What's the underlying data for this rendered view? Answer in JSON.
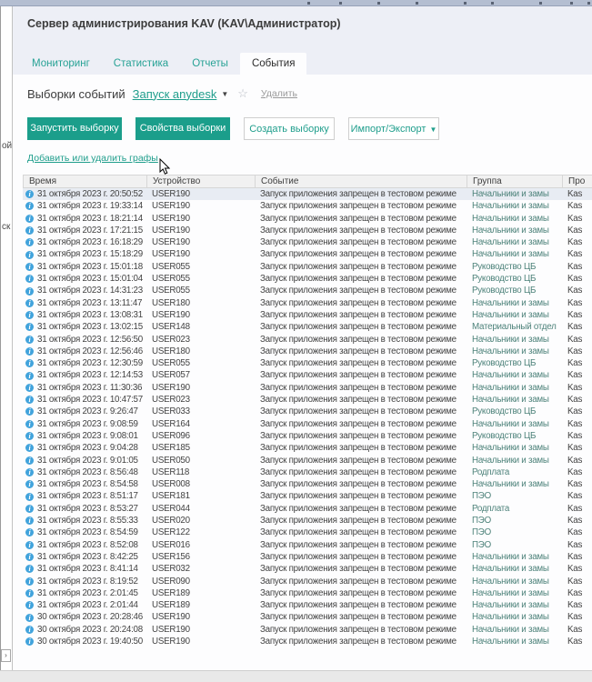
{
  "window": {
    "title": "Сервер администрирования KAV (KAV\\Администратор)"
  },
  "tabs": [
    {
      "name": "monitoring",
      "label": "Мониторинг",
      "active": false
    },
    {
      "name": "statistics",
      "label": "Статистика",
      "active": false
    },
    {
      "name": "reports",
      "label": "Отчеты",
      "active": false
    },
    {
      "name": "events",
      "label": "События",
      "active": true
    }
  ],
  "selector": {
    "label": "Выборки событий",
    "value": "Запуск anydesk",
    "dropdown_icon": "▼",
    "favorite_icon": "☆",
    "delete_label": "Удалить"
  },
  "toolbar": [
    {
      "name": "run-selection",
      "label": "Запустить выборку",
      "style": "primary",
      "dropdown": false
    },
    {
      "name": "selection-properties",
      "label": "Свойства выборки",
      "style": "primary",
      "dropdown": false
    },
    {
      "name": "create-selection",
      "label": "Создать выборку",
      "style": "secondary",
      "dropdown": false
    },
    {
      "name": "import-export",
      "label": "Импорт/Экспорт",
      "style": "secondary",
      "dropdown": true
    }
  ],
  "edit_columns_link": "Добавить или удалить графы",
  "table": {
    "columns": [
      "Время",
      "Устройство",
      "Событие",
      "Группа",
      "Про"
    ],
    "column_names": [
      "time",
      "device",
      "event",
      "group",
      "program"
    ],
    "selected_index": 0,
    "rows": [
      [
        "31 октября 2023 г. 20:50:52",
        "USER190",
        "Запуск приложения запрещен в тестовом режиме",
        "Начальники и замы",
        "Kas"
      ],
      [
        "31 октября 2023 г. 19:33:14",
        "USER190",
        "Запуск приложения запрещен в тестовом режиме",
        "Начальники и замы",
        "Kas"
      ],
      [
        "31 октября 2023 г. 18:21:14",
        "USER190",
        "Запуск приложения запрещен в тестовом режиме",
        "Начальники и замы",
        "Kas"
      ],
      [
        "31 октября 2023 г. 17:21:15",
        "USER190",
        "Запуск приложения запрещен в тестовом режиме",
        "Начальники и замы",
        "Kas"
      ],
      [
        "31 октября 2023 г. 16:18:29",
        "USER190",
        "Запуск приложения запрещен в тестовом режиме",
        "Начальники и замы",
        "Kas"
      ],
      [
        "31 октября 2023 г. 15:18:29",
        "USER190",
        "Запуск приложения запрещен в тестовом режиме",
        "Начальники и замы",
        "Kas"
      ],
      [
        "31 октября 2023 г. 15:01:18",
        "USER055",
        "Запуск приложения запрещен в тестовом режиме",
        "Руководство ЦБ",
        "Kas"
      ],
      [
        "31 октября 2023 г. 15:01:04",
        "USER055",
        "Запуск приложения запрещен в тестовом режиме",
        "Руководство ЦБ",
        "Kas"
      ],
      [
        "31 октября 2023 г. 14:31:23",
        "USER055",
        "Запуск приложения запрещен в тестовом режиме",
        "Руководство ЦБ",
        "Kas"
      ],
      [
        "31 октября 2023 г. 13:11:47",
        "USER180",
        "Запуск приложения запрещен в тестовом режиме",
        "Начальники и замы",
        "Kas"
      ],
      [
        "31 октября 2023 г. 13:08:31",
        "USER190",
        "Запуск приложения запрещен в тестовом режиме",
        "Начальники и замы",
        "Kas"
      ],
      [
        "31 октября 2023 г. 13:02:15",
        "USER148",
        "Запуск приложения запрещен в тестовом режиме",
        "Материальный отдел",
        "Kas"
      ],
      [
        "31 октября 2023 г. 12:56:50",
        "USER023",
        "Запуск приложения запрещен в тестовом режиме",
        "Начальники и замы",
        "Kas"
      ],
      [
        "31 октября 2023 г. 12:56:46",
        "USER180",
        "Запуск приложения запрещен в тестовом режиме",
        "Начальники и замы",
        "Kas"
      ],
      [
        "31 октября 2023 г. 12:30:59",
        "USER055",
        "Запуск приложения запрещен в тестовом режиме",
        "Руководство ЦБ",
        "Kas"
      ],
      [
        "31 октября 2023 г. 12:14:53",
        "USER057",
        "Запуск приложения запрещен в тестовом режиме",
        "Начальники и замы",
        "Kas"
      ],
      [
        "31 октября 2023 г. 11:30:36",
        "USER190",
        "Запуск приложения запрещен в тестовом режиме",
        "Начальники и замы",
        "Kas"
      ],
      [
        "31 октября 2023 г. 10:47:57",
        "USER023",
        "Запуск приложения запрещен в тестовом режиме",
        "Начальники и замы",
        "Kas"
      ],
      [
        "31 октября 2023 г. 9:26:47",
        "USER033",
        "Запуск приложения запрещен в тестовом режиме",
        "Руководство ЦБ",
        "Kas"
      ],
      [
        "31 октября 2023 г. 9:08:59",
        "USER164",
        "Запуск приложения запрещен в тестовом режиме",
        "Начальники и замы",
        "Kas"
      ],
      [
        "31 октября 2023 г. 9:08:01",
        "USER096",
        "Запуск приложения запрещен в тестовом режиме",
        "Руководство ЦБ",
        "Kas"
      ],
      [
        "31 октября 2023 г. 9:04:28",
        "USER185",
        "Запуск приложения запрещен в тестовом режиме",
        "Начальники и замы",
        "Kas"
      ],
      [
        "31 октября 2023 г. 9:01:05",
        "USER050",
        "Запуск приложения запрещен в тестовом режиме",
        "Начальники и замы",
        "Kas"
      ],
      [
        "31 октября 2023 г. 8:56:48",
        "USER118",
        "Запуск приложения запрещен в тестовом режиме",
        "Родплата",
        "Kas"
      ],
      [
        "31 октября 2023 г. 8:54:58",
        "USER008",
        "Запуск приложения запрещен в тестовом режиме",
        "Начальники и замы",
        "Kas"
      ],
      [
        "31 октября 2023 г. 8:51:17",
        "USER181",
        "Запуск приложения запрещен в тестовом режиме",
        "ПЭО",
        "Kas"
      ],
      [
        "31 октября 2023 г. 8:53:27",
        "USER044",
        "Запуск приложения запрещен в тестовом режиме",
        "Родплата",
        "Kas"
      ],
      [
        "31 октября 2023 г. 8:55:33",
        "USER020",
        "Запуск приложения запрещен в тестовом режиме",
        "ПЭО",
        "Kas"
      ],
      [
        "31 октября 2023 г. 8:54:59",
        "USER122",
        "Запуск приложения запрещен в тестовом режиме",
        "ПЭО",
        "Kas"
      ],
      [
        "31 октября 2023 г. 8:52:08",
        "USER016",
        "Запуск приложения запрещен в тестовом режиме",
        "ПЭО",
        "Kas"
      ],
      [
        "31 октября 2023 г. 8:42:25",
        "USER156",
        "Запуск приложения запрещен в тестовом режиме",
        "Начальники и замы",
        "Kas"
      ],
      [
        "31 октября 2023 г. 8:41:14",
        "USER032",
        "Запуск приложения запрещен в тестовом режиме",
        "Начальники и замы",
        "Kas"
      ],
      [
        "31 октября 2023 г. 8:19:52",
        "USER090",
        "Запуск приложения запрещен в тестовом режиме",
        "Начальники и замы",
        "Kas"
      ],
      [
        "31 октября 2023 г. 2:01:45",
        "USER189",
        "Запуск приложения запрещен в тестовом режиме",
        "Начальники и замы",
        "Kas"
      ],
      [
        "31 октября 2023 г. 2:01:44",
        "USER189",
        "Запуск приложения запрещен в тестовом режиме",
        "Начальники и замы",
        "Kas"
      ],
      [
        "30 октября 2023 г. 20:28:46",
        "USER190",
        "Запуск приложения запрещен в тестовом режиме",
        "Начальники и замы",
        "Kas"
      ],
      [
        "30 октября 2023 г. 20:24:08",
        "USER190",
        "Запуск приложения запрещен в тестовом режиме",
        "Начальники и замы",
        "Kas"
      ],
      [
        "30 октября 2023 г. 19:40:50",
        "USER190",
        "Запуск приложения запрещен в тестовом режиме",
        "Начальники и замы",
        "Kas"
      ]
    ]
  },
  "side_panel": {
    "fragments": [
      "ой",
      "ск"
    ],
    "expander": "›"
  },
  "colors": {
    "accent": "#1b9e8b",
    "link": "#1f9e8c",
    "info_icon": "#41a3dc",
    "selected_row": "#e8ecf3",
    "header_zone": "#edeff6"
  }
}
